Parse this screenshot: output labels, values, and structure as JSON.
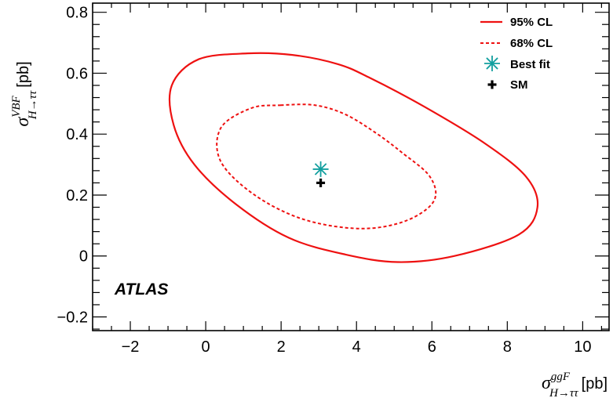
{
  "chart_data": {
    "type": "contour",
    "xlabel": {
      "symbol": "σ",
      "superscript": "ggF",
      "subscript": "H→ττ",
      "unit": "[pb]"
    },
    "ylabel": {
      "symbol": "σ",
      "superscript": "VBF",
      "subscript": "H→ττ",
      "unit": "[pb]"
    },
    "xlim": [
      -3.0,
      10.7
    ],
    "ylim": [
      -0.245,
      0.83
    ],
    "x_ticks": [
      -2,
      0,
      2,
      4,
      6,
      8,
      10
    ],
    "y_ticks": [
      -0.2,
      0,
      0.2,
      0.4,
      0.6,
      0.8
    ],
    "x_tick_labels": [
      "−2",
      "0",
      "2",
      "4",
      "6",
      "8",
      "10"
    ],
    "y_tick_labels": [
      "−0.2",
      "0",
      "0.2",
      "0.4",
      "0.6",
      "0.8"
    ],
    "annotation": "ATLAS",
    "legend_position": "top-right",
    "colors": {
      "contour": "#ee1111",
      "best_fit": "#129f9f",
      "sm": "#000000"
    },
    "series": [
      {
        "name": "95% CL",
        "style": "solid",
        "points": [
          [
            1.1,
            0.665
          ],
          [
            -0.2,
            0.645
          ],
          [
            -0.9,
            0.56
          ],
          [
            -0.85,
            0.43
          ],
          [
            -0.3,
            0.3
          ],
          [
            0.8,
            0.17
          ],
          [
            2.2,
            0.06
          ],
          [
            3.7,
            0.005
          ],
          [
            5.1,
            -0.02
          ],
          [
            6.6,
            0.0
          ],
          [
            8.3,
            0.07
          ],
          [
            8.8,
            0.16
          ],
          [
            8.5,
            0.26
          ],
          [
            7.4,
            0.37
          ],
          [
            5.8,
            0.49
          ],
          [
            4.35,
            0.585
          ],
          [
            3.5,
            0.63
          ],
          [
            2.3,
            0.66
          ]
        ]
      },
      {
        "name": "68% CL",
        "style": "dashed",
        "points": [
          [
            2.0,
            0.495
          ],
          [
            1.2,
            0.485
          ],
          [
            0.4,
            0.42
          ],
          [
            0.4,
            0.31
          ],
          [
            1.3,
            0.2
          ],
          [
            2.6,
            0.12
          ],
          [
            4.1,
            0.09
          ],
          [
            5.3,
            0.115
          ],
          [
            6.05,
            0.18
          ],
          [
            5.95,
            0.26
          ],
          [
            5.2,
            0.34
          ],
          [
            4.5,
            0.405
          ],
          [
            3.7,
            0.465
          ],
          [
            2.9,
            0.495
          ]
        ]
      }
    ],
    "markers": [
      {
        "name": "Best fit",
        "x": 3.05,
        "y": 0.285,
        "symbol": "asterisk"
      },
      {
        "name": "SM",
        "x": 3.05,
        "y": 0.24,
        "symbol": "cross"
      }
    ]
  }
}
